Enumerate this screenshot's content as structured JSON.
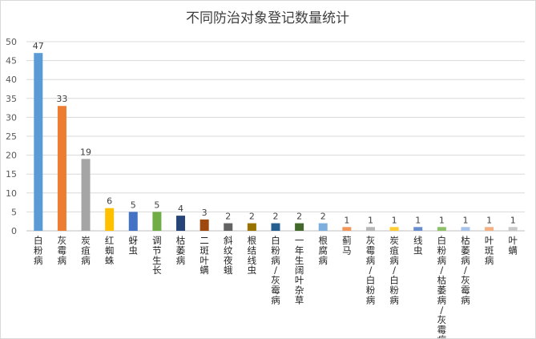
{
  "chart_data": {
    "type": "bar",
    "title": "不同防治对象登记数量统计",
    "xlabel": "",
    "ylabel": "",
    "ylim": [
      0,
      50
    ],
    "yticks": [
      0,
      5,
      10,
      15,
      20,
      25,
      30,
      35,
      40,
      45,
      50
    ],
    "grid": true,
    "legend": "none",
    "categories": [
      "白粉病",
      "灰霉病",
      "炭疽病",
      "红蜘蛛",
      "蚜虫",
      "调节生长",
      "枯萎病",
      "二斑叶螨",
      "斜纹夜蛾",
      "根结线虫",
      "白粉病/灰霉病",
      "一年生阔叶杂草",
      "根腐病",
      "蓟马",
      "灰霉病/白粉病",
      "炭疽病/白粉病",
      "线虫",
      "白粉病/枯萎病/灰霉病",
      "枯萎病/灰霉病",
      "叶斑病",
      "叶螨"
    ],
    "values": [
      47,
      33,
      19,
      6,
      5,
      5,
      4,
      3,
      2,
      2,
      2,
      2,
      2,
      1,
      1,
      1,
      1,
      1,
      1,
      1,
      1
    ],
    "colors": [
      "#5b9bd5",
      "#ed7d31",
      "#a5a5a5",
      "#ffc000",
      "#4472c4",
      "#70ad47",
      "#264478",
      "#9e480e",
      "#636363",
      "#997300",
      "#255e91",
      "#43682b",
      "#7cafdd",
      "#f1975a",
      "#b7b7b7",
      "#ffcd33",
      "#698ed0",
      "#8cc168",
      "#a9c4eb",
      "#f4b183",
      "#c9c9c9"
    ]
  }
}
